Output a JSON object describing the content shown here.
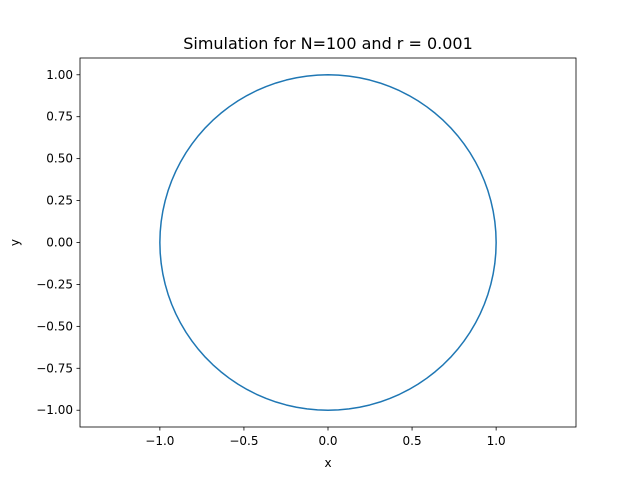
{
  "chart_data": {
    "type": "line",
    "title": "Simulation for N=100 and r = 0.001",
    "xlabel": "x",
    "ylabel": "y",
    "xlim": [
      -1.475,
      1.475
    ],
    "ylim": [
      -1.1,
      1.1
    ],
    "xticks": [
      -1.0,
      -0.5,
      0.0,
      0.5,
      1.0
    ],
    "xtick_labels": [
      "−1.0",
      "−0.5",
      "0.0",
      "0.5",
      "1.0"
    ],
    "yticks": [
      -1.0,
      -0.75,
      -0.5,
      -0.25,
      0.0,
      0.25,
      0.5,
      0.75,
      1.0
    ],
    "ytick_labels": [
      "−1.00",
      "−0.75",
      "−0.50",
      "−0.25",
      "0.00",
      "0.25",
      "0.50",
      "0.75",
      "1.00"
    ],
    "grid": false,
    "series": [
      {
        "color": "#1f77b4",
        "shape": "circle",
        "center": [
          0,
          0
        ],
        "radius": 1.0,
        "points": 100
      }
    ]
  }
}
